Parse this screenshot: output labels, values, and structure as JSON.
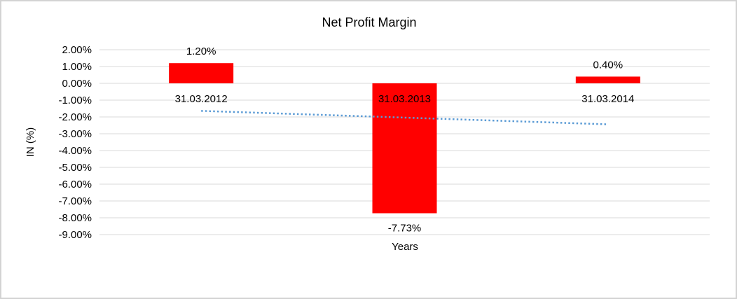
{
  "window": {
    "background_color": "#ffffff",
    "border_color": "#d3d3d3"
  },
  "chart_data": {
    "type": "bar",
    "title": "Net Profit Margin",
    "xlabel": "Years",
    "ylabel": "IN (%)",
    "categories": [
      "31.03.2012",
      "31.03.2013",
      "31.03.2014"
    ],
    "values": [
      1.2,
      -7.73,
      0.4
    ],
    "value_labels": [
      "1.20%",
      "-7.73%",
      "0.40%"
    ],
    "ylim": [
      -9,
      2
    ],
    "ytick_step": 1,
    "ytick_suffix": "%",
    "ytick_decimals": 2,
    "grid": true,
    "legend_position": "none",
    "bar_color": "#ff0000",
    "gridline_color": "#d9d9d9",
    "text_color": "#000000",
    "trendline": {
      "type": "linear",
      "style": "dotted",
      "color": "#5b9bd5",
      "start_value": -1.64,
      "end_value": -2.44
    }
  }
}
